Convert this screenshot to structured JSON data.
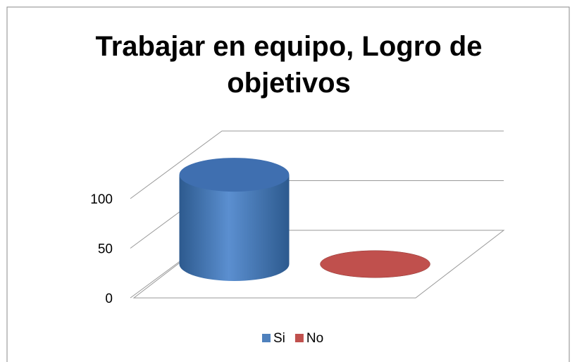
{
  "chart_data": {
    "type": "bar3d",
    "title": "Trabajar en equipo, Logro de objetivos",
    "categories": [
      null
    ],
    "series": [
      {
        "name": "Si",
        "color": "#4f81bd",
        "values": [
          90
        ]
      },
      {
        "name": "No",
        "color": "#c0504d",
        "values": [
          0
        ]
      }
    ],
    "ylim": [
      0,
      100
    ],
    "yticks": [
      0,
      50,
      100
    ],
    "grid": true,
    "legend": "bottom"
  }
}
